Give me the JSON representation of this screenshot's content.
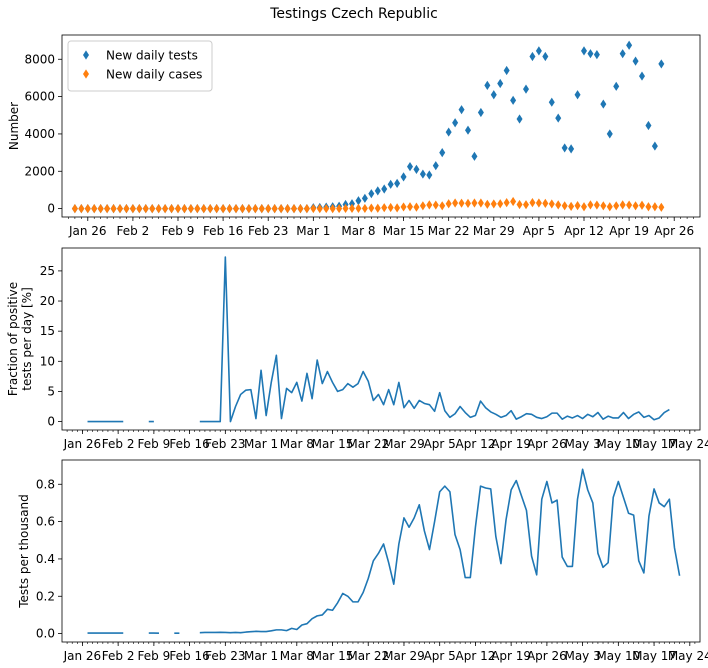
{
  "figure_title": "Testings Czech Republic",
  "chart_data": [
    {
      "type": "scatter",
      "ylabel": "Number",
      "xlim": [
        "2020-01-22",
        "2020-04-30"
      ],
      "ylim": [
        -450,
        9300
      ],
      "yticks": [
        0,
        2000,
        4000,
        6000,
        8000
      ],
      "xtick_labels": [
        "Jan 26",
        "Feb 2",
        "Feb 9",
        "Feb 16",
        "Feb 23",
        "Mar 1",
        "Mar 8",
        "Mar 15",
        "Mar 22",
        "Mar 29",
        "Apr 5",
        "Apr 12",
        "Apr 19",
        "Apr 26"
      ],
      "xtick_dates": [
        "2020-01-26",
        "2020-02-02",
        "2020-02-09",
        "2020-02-16",
        "2020-02-23",
        "2020-03-01",
        "2020-03-08",
        "2020-03-15",
        "2020-03-22",
        "2020-03-29",
        "2020-04-05",
        "2020-04-12",
        "2020-04-19",
        "2020-04-26"
      ],
      "legend_position": "top-left",
      "grid": false,
      "series": [
        {
          "name": "New daily tests",
          "color": "#1f77b4",
          "marker": "diamond",
          "start_date": "2020-01-24",
          "values": [
            0,
            0,
            0,
            0,
            0,
            0,
            0,
            0,
            0,
            0,
            0,
            0,
            0,
            0,
            0,
            0,
            0,
            0,
            0,
            0,
            0,
            0,
            0,
            0,
            0,
            0,
            0,
            0,
            0,
            0,
            0,
            0,
            0,
            0,
            0,
            0,
            0,
            50,
            60,
            80,
            100,
            130,
            220,
            260,
            420,
            550,
            800,
            950,
            1050,
            1300,
            1350,
            1700,
            2250,
            2100,
            1850,
            1800,
            2300,
            3000,
            4100,
            4600,
            5300,
            4200,
            2800,
            5150,
            6600,
            6100,
            6700,
            7400,
            5800,
            4800,
            6400,
            8150,
            8450,
            8150,
            5700,
            4850,
            3250,
            3200,
            6100,
            8450,
            8300,
            8250,
            5600,
            4000,
            6550,
            8300,
            8750,
            7900,
            7100,
            4450,
            3350,
            7750
          ]
        },
        {
          "name": "New daily cases",
          "color": "#ff7f0e",
          "marker": "diamond",
          "start_date": "2020-01-24",
          "values": [
            0,
            0,
            0,
            0,
            0,
            0,
            0,
            0,
            0,
            0,
            0,
            0,
            0,
            0,
            0,
            0,
            0,
            0,
            0,
            0,
            0,
            0,
            0,
            0,
            0,
            0,
            0,
            0,
            0,
            0,
            0,
            0,
            0,
            0,
            0,
            0,
            0,
            3,
            0,
            2,
            0,
            2,
            8,
            14,
            12,
            10,
            30,
            20,
            50,
            60,
            40,
            90,
            100,
            80,
            150,
            200,
            190,
            150,
            260,
            300,
            290,
            280,
            300,
            300,
            230,
            250,
            260,
            320,
            380,
            220,
            210,
            320,
            300,
            280,
            250,
            200,
            150,
            120,
            160,
            100,
            200,
            190,
            150,
            100,
            150,
            200,
            190,
            150,
            180,
            100,
            100,
            70
          ]
        }
      ]
    },
    {
      "type": "line",
      "ylabel": "Fraction of positive tests per day [%]",
      "ylabel_lines": [
        "Fraction of positive",
        "tests per day [%]"
      ],
      "xlim": [
        "2020-01-22",
        "2020-05-26"
      ],
      "ylim": [
        -1.4,
        28.8
      ],
      "yticks": [
        0,
        5,
        10,
        15,
        20,
        25
      ],
      "xtick_labels": [
        "Jan 26",
        "Feb 2",
        "Feb 9",
        "Feb 16",
        "Feb 23",
        "Mar 1",
        "Mar 8",
        "Mar 15",
        "Mar 22",
        "Mar 29",
        "Apr 5",
        "Apr 12",
        "Apr 19",
        "Apr 26",
        "May 3",
        "May 10",
        "May 17",
        "May 24"
      ],
      "xtick_dates": [
        "2020-01-26",
        "2020-02-02",
        "2020-02-09",
        "2020-02-16",
        "2020-02-23",
        "2020-03-01",
        "2020-03-08",
        "2020-03-15",
        "2020-03-22",
        "2020-03-29",
        "2020-04-05",
        "2020-04-12",
        "2020-04-19",
        "2020-04-26",
        "2020-05-03",
        "2020-05-10",
        "2020-05-17",
        "2020-05-24"
      ],
      "grid": false,
      "series": [
        {
          "name": "",
          "color": "#1f77b4",
          "start_date": "2020-01-27",
          "values": [
            0,
            0,
            0,
            0,
            0,
            0,
            0,
            0,
            null,
            null,
            null,
            null,
            0,
            0,
            null,
            null,
            null,
            0,
            null,
            null,
            null,
            null,
            0,
            0,
            0,
            0,
            0,
            27.3,
            0,
            2.5,
            4.5,
            5.2,
            5.3,
            0.5,
            8.5,
            1,
            6.5,
            11,
            0.5,
            5.5,
            4.8,
            6.5,
            3.4,
            8,
            3.8,
            10.2,
            6.3,
            8.3,
            6.5,
            5,
            5.3,
            6.3,
            5.7,
            6.3,
            8.3,
            6.7,
            3.5,
            4.5,
            2.8,
            5.3,
            2.8,
            6.5,
            2.3,
            3.5,
            2.2,
            3.5,
            3,
            2.8,
            1.7,
            4.8,
            1.8,
            0.7,
            1.3,
            2.5,
            1.5,
            0.7,
            1,
            3.4,
            2.3,
            1.6,
            1.2,
            0.7,
            1,
            1.8,
            0.4,
            0.8,
            1.3,
            1.2,
            0.7,
            0.5,
            0.8,
            1.4,
            1.4,
            0.4,
            0.9,
            0.6,
            1,
            0.5,
            1.2,
            0.8,
            1.5,
            0.4,
            0.9,
            0.6,
            0.6,
            1.5,
            0.5,
            1.2,
            1.6,
            0.7,
            1,
            0.3,
            0.6,
            1.5,
            2
          ]
        }
      ]
    },
    {
      "type": "line",
      "ylabel": "Tests per thousand",
      "xlim": [
        "2020-01-22",
        "2020-05-26"
      ],
      "ylim": [
        -0.045,
        0.93
      ],
      "yticks": [
        0.0,
        0.2,
        0.4,
        0.6,
        0.8
      ],
      "ytick_labels": [
        "0.0",
        "0.2",
        "0.4",
        "0.6",
        "0.8"
      ],
      "xtick_labels": [
        "Jan 26",
        "Feb 2",
        "Feb 9",
        "Feb 16",
        "Feb 23",
        "Mar 1",
        "Mar 8",
        "Mar 15",
        "Mar 22",
        "Mar 29",
        "Apr 5",
        "Apr 12",
        "Apr 19",
        "Apr 26",
        "May 3",
        "May 10",
        "May 17",
        "May 24"
      ],
      "xtick_dates": [
        "2020-01-26",
        "2020-02-02",
        "2020-02-09",
        "2020-02-16",
        "2020-02-23",
        "2020-03-01",
        "2020-03-08",
        "2020-03-15",
        "2020-03-22",
        "2020-03-29",
        "2020-04-05",
        "2020-04-12",
        "2020-04-19",
        "2020-04-26",
        "2020-05-03",
        "2020-05-10",
        "2020-05-17",
        "2020-05-24"
      ],
      "grid": false,
      "series": [
        {
          "name": "",
          "color": "#1f77b4",
          "start_date": "2020-01-27",
          "values": [
            0.003,
            0.003,
            0.003,
            0.003,
            0.003,
            0.003,
            0.003,
            0.003,
            null,
            null,
            null,
            null,
            0.003,
            0.003,
            0.002,
            null,
            null,
            0.002,
            0.002,
            null,
            null,
            null,
            0.005,
            0.006,
            0.006,
            0.006,
            0.007,
            0.006,
            0.005,
            0.006,
            0.005,
            0.008,
            0.01,
            0.012,
            0.011,
            0.011,
            0.015,
            0.02,
            0.02,
            0.016,
            0.028,
            0.022,
            0.046,
            0.053,
            0.08,
            0.095,
            0.1,
            0.13,
            0.125,
            0.165,
            0.215,
            0.2,
            0.17,
            0.17,
            0.22,
            0.295,
            0.39,
            0.43,
            0.48,
            0.38,
            0.265,
            0.48,
            0.62,
            0.57,
            0.62,
            0.69,
            0.55,
            0.45,
            0.6,
            0.76,
            0.79,
            0.76,
            0.53,
            0.45,
            0.3,
            0.3,
            0.57,
            0.79,
            0.78,
            0.775,
            0.52,
            0.375,
            0.61,
            0.77,
            0.82,
            0.74,
            0.66,
            0.415,
            0.315,
            0.72,
            0.815,
            0.7,
            0.715,
            0.41,
            0.36,
            0.36,
            0.72,
            0.88,
            0.77,
            0.7,
            0.43,
            0.355,
            0.38,
            0.73,
            0.815,
            0.73,
            0.645,
            0.635,
            0.39,
            0.325,
            0.63,
            0.775,
            0.7,
            0.68,
            0.72,
            0.46,
            0.31
          ]
        }
      ]
    }
  ]
}
